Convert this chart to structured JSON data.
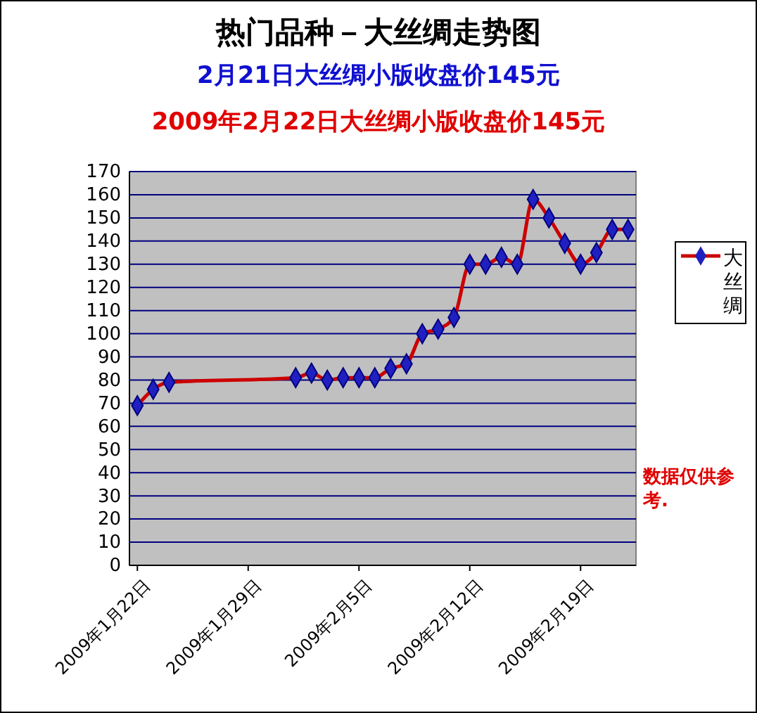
{
  "chart_data": {
    "type": "line",
    "title": "热门品种－大丝绸走势图",
    "subtitle": "2月21日大丝绸小版收盘价145元",
    "annotations": [
      "2009年2月22日大丝绸小版收盘价145元",
      "数据仅供参考."
    ],
    "x": [
      "2009-01-22",
      "2009-01-23",
      "2009-01-24",
      "2009-02-01",
      "2009-02-02",
      "2009-02-03",
      "2009-02-04",
      "2009-02-05",
      "2009-02-06",
      "2009-02-07",
      "2009-02-08",
      "2009-02-09",
      "2009-02-10",
      "2009-02-11",
      "2009-02-12",
      "2009-02-13",
      "2009-02-14",
      "2009-02-15",
      "2009-02-16",
      "2009-02-17",
      "2009-02-18",
      "2009-02-19",
      "2009-02-20",
      "2009-02-21",
      "2009-02-22"
    ],
    "series": [
      {
        "name": "大丝绸",
        "color": "#cc0000",
        "values": [
          69,
          76,
          79,
          81,
          83,
          80,
          81,
          81,
          81,
          85,
          87,
          100,
          102,
          107,
          130,
          130,
          133,
          130,
          158,
          150,
          139,
          130,
          135,
          145,
          145
        ]
      }
    ],
    "xlim": [
      "2009-01-21T12:00",
      "2009-02-22T12:00"
    ],
    "xticks": [
      {
        "value": "2009-01-22",
        "label": "2009年1月22日"
      },
      {
        "value": "2009-01-29",
        "label": "2009年1月29日"
      },
      {
        "value": "2009-02-05",
        "label": "2009年2月5日"
      },
      {
        "value": "2009-02-12",
        "label": "2009年2月12日"
      },
      {
        "value": "2009-02-19",
        "label": "2009年2月19日"
      }
    ],
    "ylim": [
      0,
      170
    ],
    "yticks": [
      0,
      10,
      20,
      30,
      40,
      50,
      60,
      70,
      80,
      90,
      100,
      110,
      120,
      130,
      140,
      150,
      160,
      170
    ],
    "grid": "y",
    "legend": "right",
    "marker": "diamond",
    "line_style": "solid"
  }
}
